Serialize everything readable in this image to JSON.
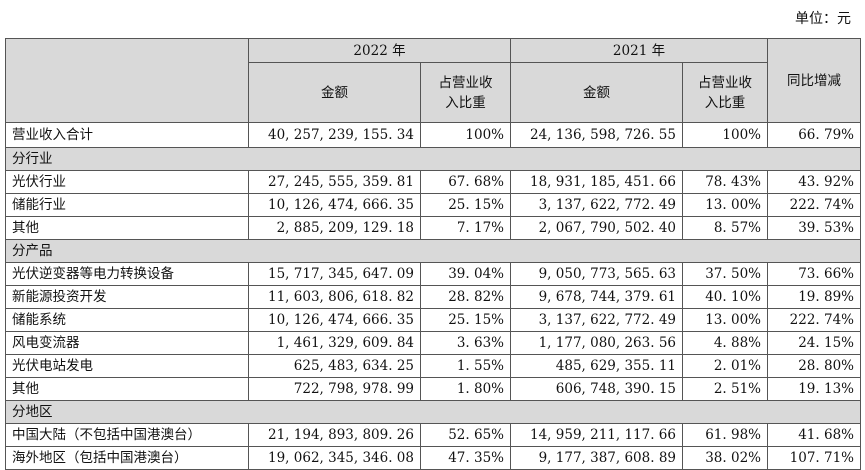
{
  "unit_label": "单位：元",
  "header": {
    "year_2022": "2022 年",
    "year_2021": "2021 年",
    "amount": "金额",
    "share_line1": "占营业收",
    "share_line2": "入比重",
    "yoy": "同比增减"
  },
  "total": {
    "label": "营业收入合计",
    "amt_2022": "40, 257, 239, 155. 34",
    "pct_2022": "100%",
    "amt_2021": "24, 136, 598, 726. 55",
    "pct_2021": "100%",
    "yoy": "66. 79%"
  },
  "sections": [
    {
      "title": "分行业",
      "rows": [
        {
          "label": "光伏行业",
          "amt_2022": "27, 245, 555, 359. 81",
          "pct_2022": "67. 68%",
          "amt_2021": "18, 931, 185, 451. 66",
          "pct_2021": "78. 43%",
          "yoy": "43. 92%"
        },
        {
          "label": "储能行业",
          "amt_2022": "10, 126, 474, 666. 35",
          "pct_2022": "25. 15%",
          "amt_2021": "3, 137, 622, 772. 49",
          "pct_2021": "13. 00%",
          "yoy": "222. 74%"
        },
        {
          "label": "其他",
          "amt_2022": "2, 885, 209, 129. 18",
          "pct_2022": "7. 17%",
          "amt_2021": "2, 067, 790, 502. 40",
          "pct_2021": "8. 57%",
          "yoy": "39. 53%"
        }
      ]
    },
    {
      "title": "分产品",
      "rows": [
        {
          "label": "光伏逆变器等电力转换设备",
          "amt_2022": "15, 717, 345, 647. 09",
          "pct_2022": "39. 04%",
          "amt_2021": "9, 050, 773, 565. 63",
          "pct_2021": "37. 50%",
          "yoy": "73. 66%"
        },
        {
          "label": "新能源投资开发",
          "amt_2022": "11, 603, 806, 618. 82",
          "pct_2022": "28. 82%",
          "amt_2021": "9, 678, 744, 379. 61",
          "pct_2021": "40. 10%",
          "yoy": "19. 89%"
        },
        {
          "label": "储能系统",
          "amt_2022": "10, 126, 474, 666. 35",
          "pct_2022": "25. 15%",
          "amt_2021": "3, 137, 622, 772. 49",
          "pct_2021": "13. 00%",
          "yoy": "222. 74%"
        },
        {
          "label": "风电变流器",
          "amt_2022": "1, 461, 329, 609. 84",
          "pct_2022": "3. 63%",
          "amt_2021": "1, 177, 080, 263. 56",
          "pct_2021": "4. 88%",
          "yoy": "24. 15%"
        },
        {
          "label": "光伏电站发电",
          "amt_2022": "625, 483, 634. 25",
          "pct_2022": "1. 55%",
          "amt_2021": "485, 629, 355. 11",
          "pct_2021": "2. 01%",
          "yoy": "28. 80%"
        },
        {
          "label": "其他",
          "amt_2022": "722, 798, 978. 99",
          "pct_2022": "1. 80%",
          "amt_2021": "606, 748, 390. 15",
          "pct_2021": "2. 51%",
          "yoy": "19. 13%"
        }
      ]
    },
    {
      "title": "分地区",
      "rows": [
        {
          "label": "中国大陆（不包括中国港澳台）",
          "amt_2022": "21, 194, 893, 809. 26",
          "pct_2022": "52. 65%",
          "amt_2021": "14, 959, 211, 117. 66",
          "pct_2021": "61. 98%",
          "yoy": "41. 68%"
        },
        {
          "label": "海外地区（包括中国港澳台）",
          "amt_2022": "19, 062, 345, 346. 08",
          "pct_2022": "47. 35%",
          "amt_2021": "9, 177, 387, 608. 89",
          "pct_2021": "38. 02%",
          "yoy": "107. 71%"
        }
      ]
    }
  ]
}
